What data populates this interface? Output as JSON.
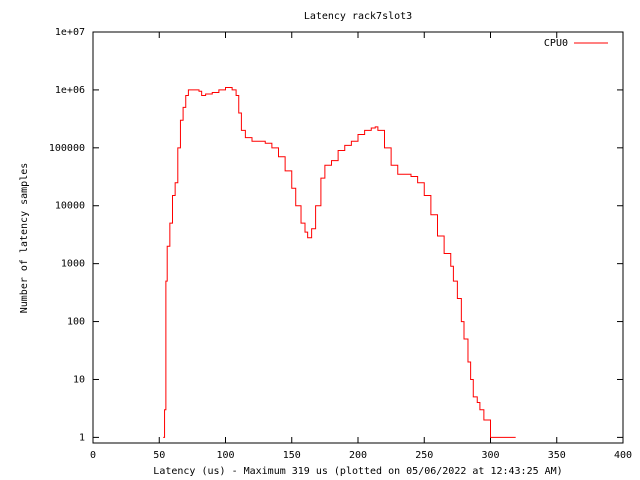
{
  "chart_data": {
    "type": "step",
    "title": "Latency rack7slot3",
    "x_label": "Latency (us) - Maximum 319 us (plotted on 05/06/2022 at 12:43:25 AM)",
    "y_label": "Number of latency samples",
    "log_y": true,
    "legend": "top-right",
    "xlim": [
      0,
      400
    ],
    "xticks": [
      0,
      50,
      100,
      150,
      200,
      250,
      300,
      350,
      400
    ],
    "ylim": [
      0.8,
      10000000
    ],
    "yticks": [
      1,
      10,
      100,
      1000,
      10000,
      100000,
      {
        "value": 1000000,
        "label": "1e+06"
      },
      {
        "value": 10000000,
        "label": "1e+07"
      }
    ],
    "series": [
      {
        "name": "CPU0",
        "color": "#ff0000",
        "x": [
          53,
          54,
          55,
          56,
          58,
          60,
          62,
          64,
          66,
          68,
          70,
          72,
          75,
          80,
          82,
          85,
          90,
          95,
          100,
          105,
          108,
          110,
          112,
          115,
          120,
          130,
          135,
          140,
          145,
          150,
          153,
          157,
          160,
          162,
          165,
          168,
          172,
          175,
          180,
          185,
          190,
          195,
          200,
          205,
          210,
          213,
          215,
          220,
          225,
          230,
          240,
          245,
          250,
          255,
          260,
          265,
          270,
          272,
          275,
          278,
          280,
          283,
          285,
          287,
          290,
          292,
          295,
          300,
          305,
          310,
          319
        ],
        "values": [
          1,
          3,
          500,
          2000,
          5000,
          15000,
          25000,
          100000,
          300000,
          500000,
          800000,
          1000000,
          1000000,
          950000,
          800000,
          850000,
          900000,
          1000000,
          1100000,
          1000000,
          800000,
          400000,
          200000,
          150000,
          130000,
          120000,
          100000,
          70000,
          40000,
          20000,
          10000,
          5000,
          3500,
          2800,
          4000,
          10000,
          30000,
          50000,
          60000,
          90000,
          110000,
          130000,
          170000,
          200000,
          220000,
          230000,
          200000,
          100000,
          50000,
          35000,
          32000,
          25000,
          15000,
          7000,
          3000,
          1500,
          900,
          500,
          250,
          100,
          50,
          20,
          10,
          5,
          4,
          3,
          2,
          1,
          1,
          1,
          1
        ]
      }
    ]
  }
}
